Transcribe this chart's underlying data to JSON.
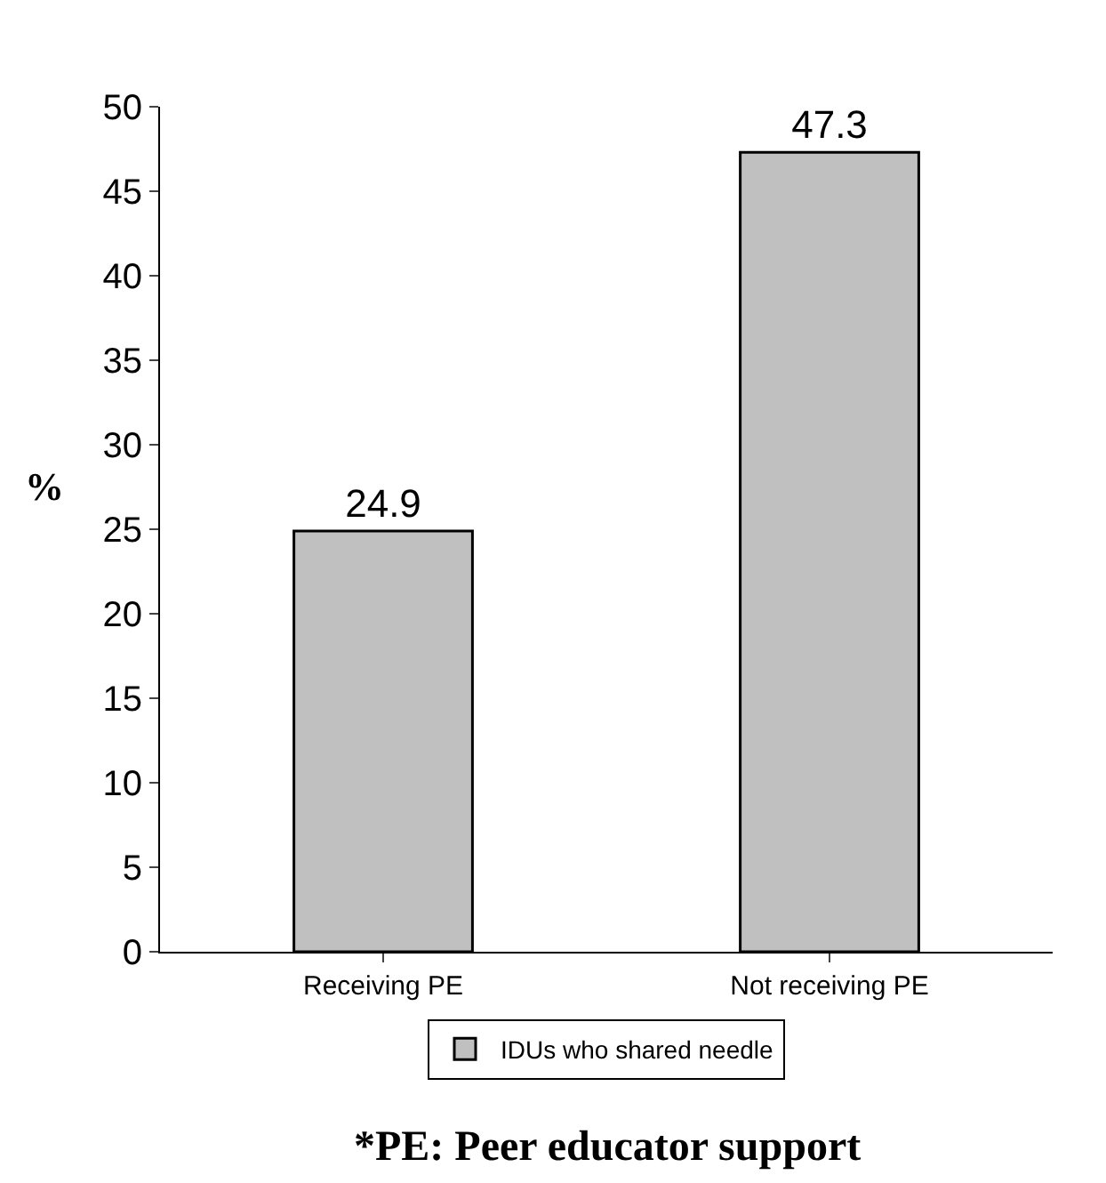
{
  "chart_data": {
    "type": "bar",
    "categories": [
      "Receiving PE",
      "Not receiving PE"
    ],
    "series": [
      {
        "name": "IDUs who shared needle",
        "color": "#c0c0c0",
        "values": [
          24.9,
          47.3
        ]
      }
    ],
    "ylabel": "%",
    "ylim": [
      0,
      50
    ],
    "yticks": [
      0,
      5,
      10,
      15,
      20,
      25,
      30,
      35,
      40,
      45,
      50
    ],
    "data_labels": true,
    "legend": "bottom",
    "annotations": [
      "*PE: Peer educator support"
    ]
  }
}
